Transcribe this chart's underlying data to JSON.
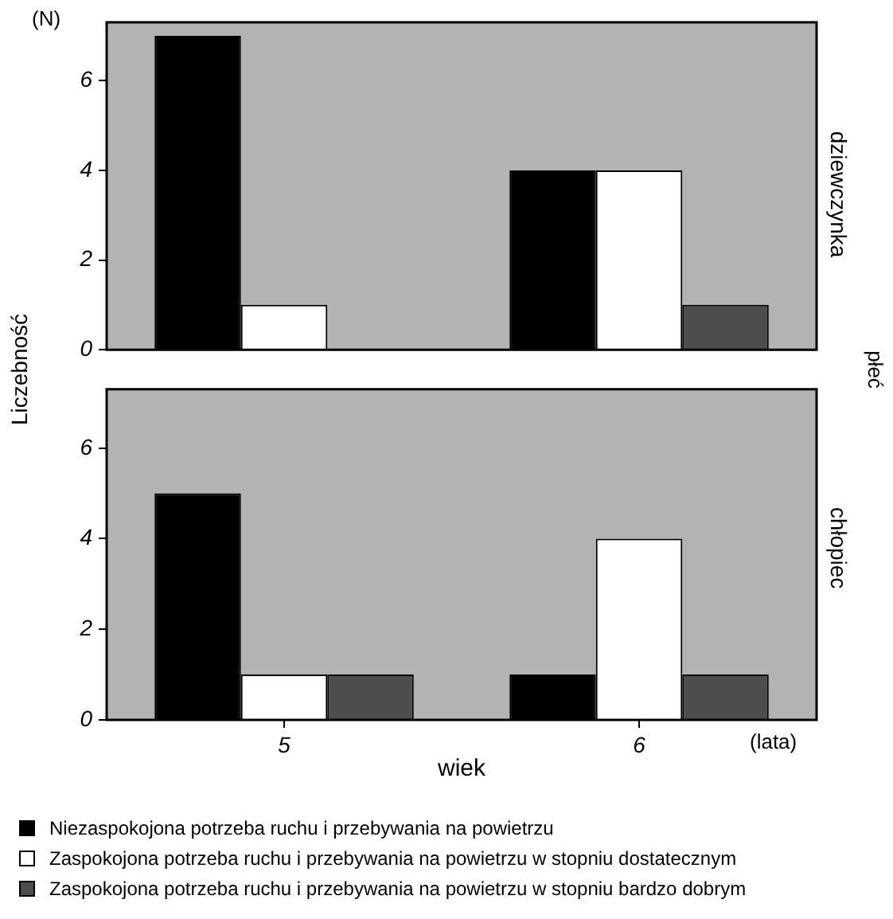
{
  "chart_data": [
    {
      "type": "bar",
      "categories": [
        "5",
        "6"
      ],
      "ylabel": "Liczebność",
      "y2label": "dziewczynka",
      "annotations": [
        "(N)",
        "płeć"
      ],
      "ylim": [
        0,
        7.3
      ],
      "yticks": [
        0,
        2,
        4,
        6
      ],
      "tick_labels": "y",
      "legend": false,
      "series": [
        {
          "color": "#000000",
          "values": [
            7,
            4
          ]
        },
        {
          "color": "#ffffff",
          "values": [
            1,
            4
          ]
        },
        {
          "color": "#4d4d4d",
          "values": [
            0,
            1
          ]
        }
      ]
    },
    {
      "type": "bar",
      "categories": [
        "5",
        "6"
      ],
      "xlabel": "wiek",
      "y2label": "chłopiec",
      "annotations": [
        "(lata)"
      ],
      "ylim": [
        0,
        7.3
      ],
      "yticks": [
        0,
        2,
        4,
        6
      ],
      "legend": "bottom",
      "series": [
        {
          "name": "Niezaspokojona potrzeba ruchu i przebywania na powietrzu",
          "color": "#000000",
          "values": [
            5,
            1
          ]
        },
        {
          "name": "Zaspokojona potrzeba ruchu i przebywania na powietrzu w stopniu dostatecznym",
          "color": "#ffffff",
          "values": [
            1,
            4
          ]
        },
        {
          "name": "Zaspokojona potrzeba ruchu i przebywania na powietrzu w stopniu bardzo dobrym",
          "color": "#4d4d4d",
          "values": [
            1,
            1
          ]
        }
      ]
    }
  ]
}
